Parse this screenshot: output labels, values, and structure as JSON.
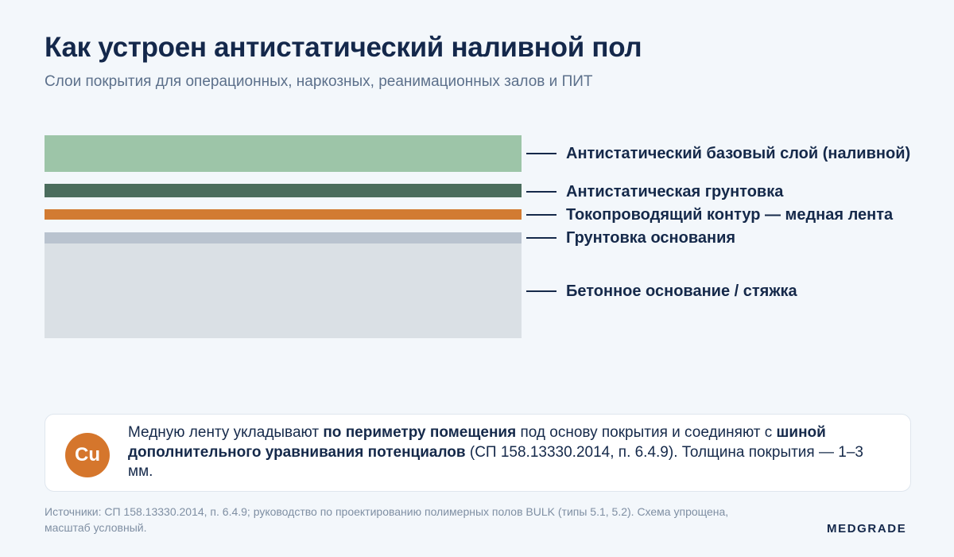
{
  "header": {
    "title": "Как устроен антистатический наливной пол",
    "subtitle": "Слои покрытия для операционных, наркозных, реанимационных залов и ПИТ"
  },
  "layers": [
    {
      "label": "Антистатический базовый слой (наливной)",
      "color": "#9dc5a8"
    },
    {
      "label": "Антистатическая грунтовка",
      "color": "#4b6d5d"
    },
    {
      "label": "Токопроводящий контур — медная лента",
      "color": "#d27b32"
    },
    {
      "label": "Грунтовка основания",
      "color": "#b9c3cf"
    },
    {
      "label": "Бетонное основание / стяжка",
      "color": "#dae0e5"
    }
  ],
  "note": {
    "badge": "Cu",
    "badge_color": "#d5762c",
    "parts": [
      "Медную ленту укладывают ",
      "по периметру помещения",
      " под основу покрытия и соединяют с ",
      "шиной дополнительного уравнивания потенциалов",
      " (СП 158.13330.2014, п. 6.4.9). Толщина покрытия — 1–3 мм."
    ]
  },
  "footer": {
    "sources": "Источники: СП 158.13330.2014, п. 6.4.9; руководство по проектированию полимерных полов BULK (типы 5.1, 5.2). Схема упрощена, масштаб условный.",
    "brand": "MEDGRADE"
  }
}
